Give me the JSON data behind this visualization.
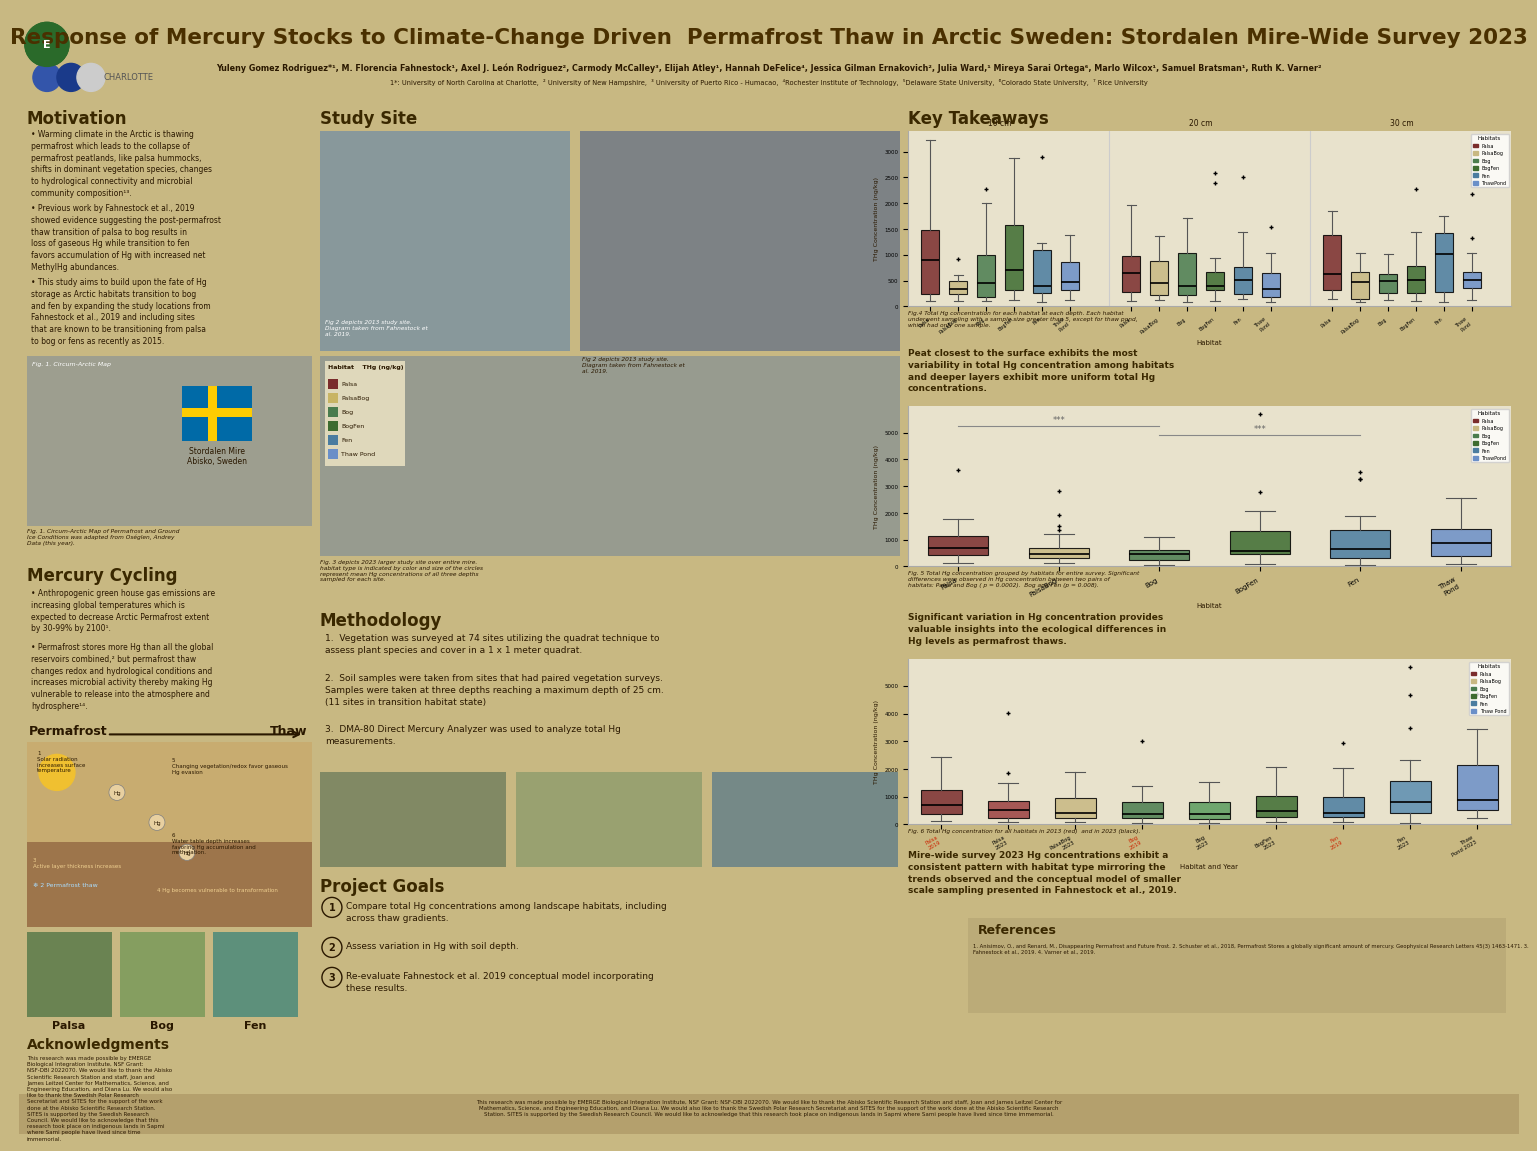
{
  "bg_color": "#c8b882",
  "title": "Response of Mercury Stocks to Climate-Change Driven  Permafrost Thaw in Arctic Sweden: Stordalen Mire-Wide Survey 2023",
  "title_color": "#4a3000",
  "authors": "Yuleny Gomez Rodriguez*¹, M. Florencia Fahnestock¹, Axel J. León Rodriguez², Carmody McCalley³, Elijah Atley¹, Hannah DeFelice⁴, Jessica Gilman Ernakovich², Julia Ward,¹ Mireya Sarai Ortega⁶, Marlo Wilcox¹, Samuel Bratsman¹, Ruth K. Varner²",
  "affiliations": "1*: University of North Carolina at Charlotte,  ² University of New Hampshire,  ³ University of Puerto Rico - Humacao,  ⁴Rochester Institute of Technology,  ⁵Delaware State University,  ⁶Colorado State University,  ⁷ Rice University",
  "section_color": "#3a2800",
  "text_color": "#2a1800",
  "motivation_bullets": [
    "Warming climate in the Arctic is thawing permafrost which leads to the collapse of permafrost peatlands, like palsa hummocks, shifts in dominant vegetation species, changes to hydrological connectivity and microbial community composition¹³.",
    "Previous work by Fahnestock et al., 2019 showed evidence suggesting the post-permafrost thaw transition of palsa to bog results in loss of gaseous Hg while transition to fen favors accumulation of Hg with increased net MethylHg abundances.",
    "This study aims to build upon the fate of Hg storage as Arctic habitats transition to bog and fen by expanding the study locations from Fahnestock et al., 2019 and including sites that are known to be transitioning from palsa to bog or fens as recently as 2015."
  ],
  "mercury_bullets": [
    "Anthropogenic green house gas emissions are increasing global temperatures which is expected to decrease Arctic Permafrost extent by 30-99% by 2100¹.",
    "Permafrost stores  more Hg than all the global reservoirs combined,² but permafrost thaw changes redox and hydrological conditions and increases microbial activity thereby making Hg vulnerable to release into the atmosphere and hydrosphere¹⁴."
  ],
  "methodology_items": [
    "Vegetation was surveyed at 74 sites utilizing the quadrat technique to assess plant species and cover in a 1 x 1 meter quadrat.",
    "Soil samples were taken from sites that had paired vegetation surveys. Samples were taken at three depths reaching a maximum depth of 25 cm. (11 sites in transition habitat state)",
    "DMA-80 Direct Mercury Analyzer was used to analyze total Hg measurements."
  ],
  "project_goals": [
    "Compare total Hg concentrations among landscape habitats, including across thaw gradients.",
    "Assess variation in Hg with soil depth.",
    "Re-evaluate Fahnestock et al. 2019 conceptual model incorporating these results."
  ],
  "habitats": [
    "Palsa",
    "PalsaBog",
    "Bog",
    "BogFen",
    "Fen",
    "ThawPond"
  ],
  "habitat_labels_short": [
    "Palsa",
    "PalsaBog",
    "Bog",
    "BogFen",
    "Fen",
    "Thaw\nPond"
  ],
  "box_colors": [
    "#7a2c2c",
    "#c8b882",
    "#4a7c4e",
    "#3d6b30",
    "#4a7ca0",
    "#6a8fc8"
  ],
  "takeaway1": "Peat closest to the surface exhibits the most variability in total Hg concentration among habitats and deeper layers exhibit more uniform total Hg concentrations.",
  "takeaway2": "Significant variation in Hg concentration provides valuable insights into the ecological differences in Hg levels as permafrost thaws.",
  "takeaway3": "Mire-wide survey 2023 Hg concentrations exhibit a consistent pattern with habitat type mirroring the trends observed and the conceptual model of smaller scale sampling presented in Fahnestock et al., 2019.",
  "fig4_caption": "Fig.4 Total Hg concentration for each habitat at each depth. Each habitat\nunderwent sampling with a sample size greater than 5, except for thaw pond,\nwhich had only one sample.",
  "fig5_caption": "Fig. 5 Total Hg concentration grouped by habitats for entire survey. Significant\ndifferences were observed in Hg concentration between two pairs of\nhabitats: Palsa and Bog ( p = 0.0002).  Bog and Fen (p = 0.008).",
  "fig6_caption": "Fig. 6 Total Hg concentration for all habitats in 2013 (red)  and in 2023 (black).",
  "ack_text": "This research was made possible by EMERGE Biological Integration Institute, NSF Grant: NSF-DBI 2022070. We would like to thank the Abisko Scientific Research Station and staff, Joan and James Leitzel Center for Mathematics, Science, and Engineering Education, and Diana Lu. We would also like to thank the Swedish Polar Research Secretariat and SITES for the support of the work done at the Abisko Scientific Research Station. SITES is supported by the Swedish Research Council. We would like to acknowledge that this research took place on indigenous lands in Sapmi where Sami people have lived since time immemorial.",
  "bottom_text": "This research was made possible by EMERGE Biological Integration Institute, NSF Grant: NSF-DBI 2022070. We would like to thank the Abisko Scientific Research Station and staff, Joan and James Leitzel Center for Mathematics, Science, and Engineering Education, and Diana Lu. We would also like to thank the Swedish Polar Research Secretariat and SITES for the support of the work done at the Abisko Scientific Research Station. SITES is supported by the Swedish Research Council. We would like to acknowledge that this research took place on indigenous lands in Sapmi where Sami people have lived since time immemorial.",
  "ref_title": "References",
  "references": "1. Anisimov, O., and Renard, M., Disappearing Permafrost and Future Frost. 2. Schuster et al., 2018, Permafrost Stores a globally significant amount of mercury. Geophysical Research Letters 45(3) 1463-1471. 3. Fahnestock et al., 2019. 4. Varner et al., 2019."
}
